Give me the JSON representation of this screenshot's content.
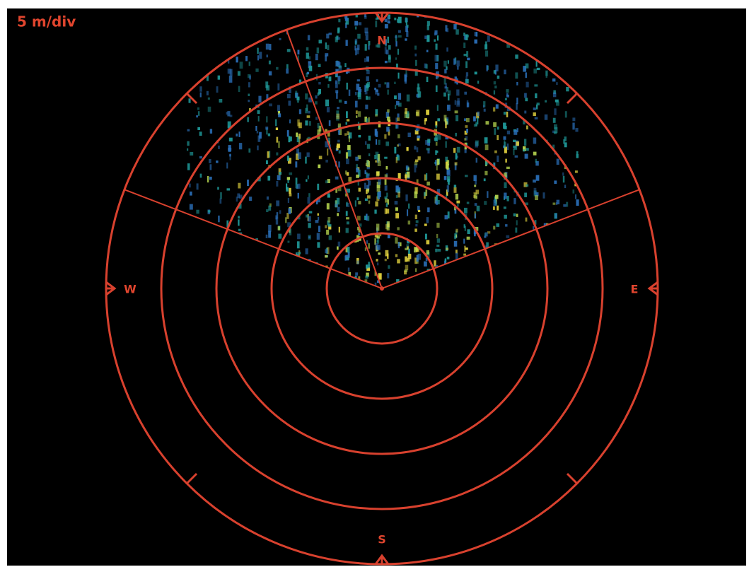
{
  "scale_label": "5 m/div",
  "compass": {
    "n": "N",
    "e": "E",
    "s": "S",
    "w": "W"
  }
}
